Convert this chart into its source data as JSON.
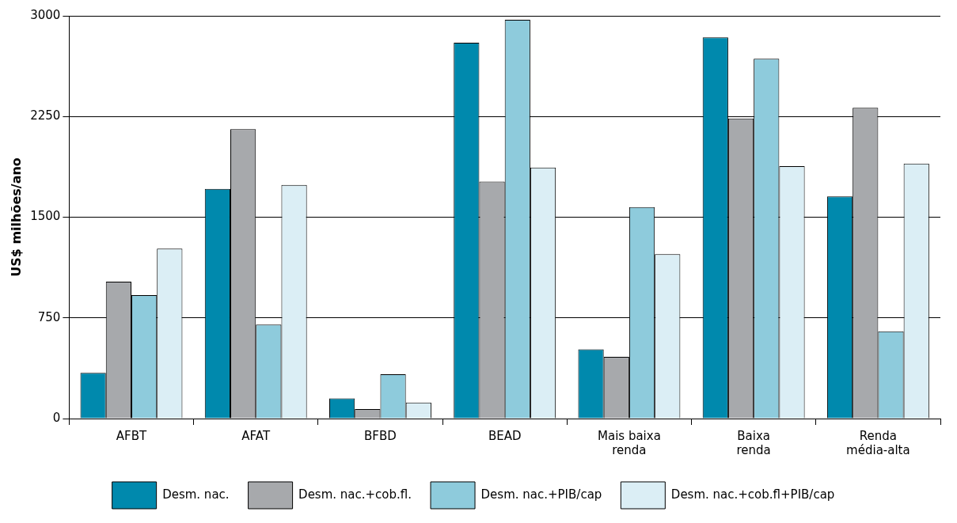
{
  "chart_data": {
    "type": "bar",
    "ylabel": "US$ milhões/ano",
    "categories": [
      "AFBT",
      "AFAT",
      "BFBD",
      "BEAD",
      "Mais baixa renda",
      "Baixa renda",
      "Renda média-alta"
    ],
    "series": [
      {
        "name": "Desm. nac.",
        "color": "#0089ad",
        "values": [
          340,
          1710,
          150,
          2800,
          515,
          2840,
          1655
        ]
      },
      {
        "name": "Desm. nac.+cob.fl.",
        "color": "#a7a9ac",
        "values": [
          1020,
          2155,
          70,
          1765,
          460,
          2235,
          2315
        ]
      },
      {
        "name": "Desm. nac.+PIB/cap",
        "color": "#8ecbdc",
        "values": [
          920,
          700,
          330,
          2970,
          1575,
          2680,
          650
        ]
      },
      {
        "name": "Desm. nac.+cob.fl+PIB/cap",
        "color": "#dbeef5",
        "values": [
          1265,
          1740,
          120,
          1870,
          1225,
          1880,
          1900
        ]
      }
    ],
    "ylim": [
      0,
      3000
    ],
    "yticks": [
      0,
      750,
      1500,
      2250,
      3000
    ],
    "grid": "y",
    "legend": "bottom"
  }
}
